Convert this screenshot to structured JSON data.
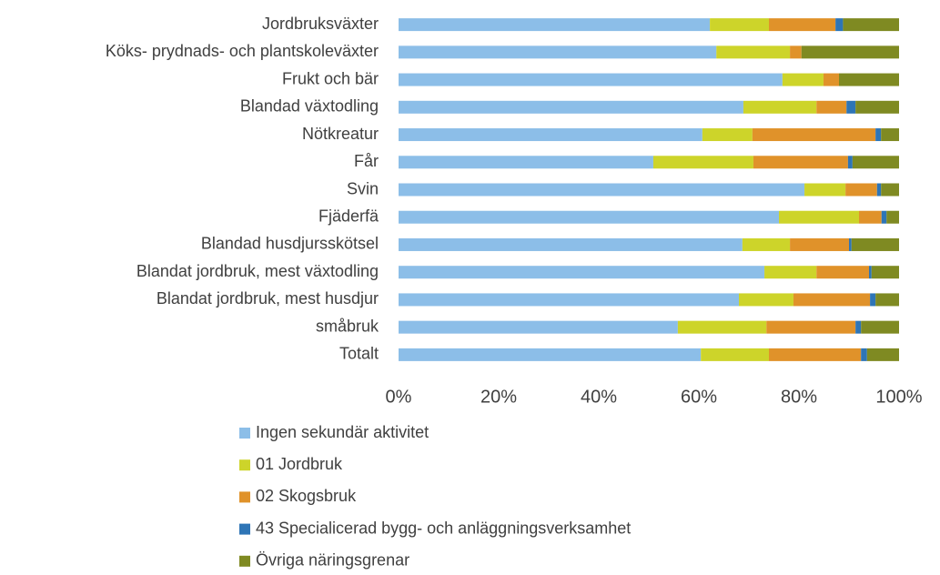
{
  "chart_data": {
    "type": "stacked_bar_horizontal",
    "categories": [
      "Jordbruksväxter",
      "Köks- prydnads- och plantskoleväxter",
      "Frukt och bär",
      "Blandad växtodling",
      "Nötkreatur",
      "Får",
      "Svin",
      "Fjäderfä",
      "Blandad husdjursskötsel",
      "Blandat jordbruk, mest växtodling",
      "Blandat jordbruk, mest husdjur",
      "småbruk",
      "Totalt"
    ],
    "series": [
      {
        "name": "Ingen sekundär aktivitet",
        "color": "#8cbee8",
        "values": [
          62.2,
          63.5,
          76.7,
          68.9,
          60.7,
          50.9,
          81.1,
          76.0,
          68.7,
          73.1,
          68.0,
          55.8,
          60.4
        ]
      },
      {
        "name": "01 Jordbruk",
        "color": "#cdd42a",
        "values": [
          11.8,
          14.7,
          8.2,
          14.6,
          10.0,
          20.0,
          8.2,
          16.0,
          9.5,
          10.4,
          10.9,
          17.7,
          13.6
        ]
      },
      {
        "name": "02 Skogsbruk",
        "color": "#e0922a",
        "values": [
          13.3,
          2.3,
          3.1,
          6.0,
          24.6,
          18.9,
          6.3,
          4.5,
          11.8,
          10.5,
          15.3,
          17.8,
          18.4
        ]
      },
      {
        "name": "43 Specialicerad bygg- och anläggningsverksamhet",
        "color": "#2e75b6",
        "values": [
          1.5,
          0,
          0,
          1.8,
          1.1,
          0.9,
          0.8,
          1.0,
          0.5,
          0.5,
          1.1,
          1.1,
          1.2
        ]
      },
      {
        "name": "Övriga näringsgrenar",
        "color": "#7f8a22",
        "values": [
          11.2,
          19.5,
          12.0,
          8.7,
          3.6,
          9.3,
          3.6,
          2.5,
          9.5,
          5.5,
          4.7,
          7.6,
          6.4
        ]
      }
    ],
    "xlim": [
      0,
      100
    ],
    "xticks": [
      {
        "value": 0,
        "label": "0%"
      },
      {
        "value": 20,
        "label": "20%"
      },
      {
        "value": 40,
        "label": "40%"
      },
      {
        "value": 60,
        "label": "60%"
      },
      {
        "value": 80,
        "label": "80%"
      },
      {
        "value": 100,
        "label": "100%"
      }
    ],
    "legend": "bottom"
  }
}
